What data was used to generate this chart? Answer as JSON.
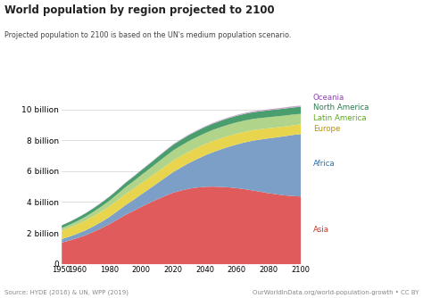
{
  "title": "World population by region projected to 2100",
  "subtitle": "Projected population to 2100 is based on the UN's medium population scenario.",
  "source_left": "Source: HYDE (2016) & UN, WPP (2019)",
  "source_right": "OurWorldInData.org/world-population-growth • CC BY",
  "ytick_labels": [
    "0",
    "2 billion",
    "4 billion",
    "6 billion",
    "8 billion",
    "10 billion"
  ],
  "ytick_values": [
    0,
    2,
    4,
    6,
    8,
    10
  ],
  "years": [
    1950,
    1955,
    1960,
    1965,
    1970,
    1975,
    1980,
    1985,
    1990,
    1995,
    2000,
    2005,
    2010,
    2015,
    2020,
    2025,
    2030,
    2035,
    2040,
    2045,
    2050,
    2055,
    2060,
    2065,
    2070,
    2075,
    2080,
    2085,
    2090,
    2095,
    2100
  ],
  "regions": [
    "Asia",
    "Africa",
    "Europe",
    "Latin America",
    "North America",
    "Oceania"
  ],
  "colors": {
    "Asia": "#e05c5c",
    "Africa": "#7b9fc7",
    "Europe": "#e8d44d",
    "Latin America": "#b0d48a",
    "North America": "#4a9e6e",
    "Oceania": "#c8a8cc"
  },
  "label_colors": {
    "Asia": "#c0392b",
    "Africa": "#2c6fad",
    "Europe": "#b8920a",
    "Latin America": "#5aaa1e",
    "North America": "#2d7a50",
    "Oceania": "#8e44ad"
  },
  "data": {
    "Asia": [
      1.4,
      1.54,
      1.7,
      1.88,
      2.1,
      2.34,
      2.6,
      2.9,
      3.2,
      3.45,
      3.72,
      3.97,
      4.21,
      4.43,
      4.64,
      4.78,
      4.9,
      4.97,
      5.02,
      5.03,
      5.01,
      4.98,
      4.93,
      4.86,
      4.78,
      4.69,
      4.6,
      4.53,
      4.46,
      4.42,
      4.39
    ],
    "Africa": [
      0.228,
      0.254,
      0.285,
      0.32,
      0.362,
      0.411,
      0.47,
      0.543,
      0.63,
      0.718,
      0.814,
      0.921,
      1.044,
      1.186,
      1.34,
      1.5,
      1.67,
      1.85,
      2.04,
      2.24,
      2.44,
      2.64,
      2.84,
      3.04,
      3.23,
      3.4,
      3.56,
      3.7,
      3.84,
      3.96,
      4.05
    ],
    "Europe": [
      0.549,
      0.576,
      0.605,
      0.634,
      0.657,
      0.676,
      0.694,
      0.705,
      0.721,
      0.728,
      0.73,
      0.731,
      0.738,
      0.744,
      0.748,
      0.745,
      0.74,
      0.736,
      0.732,
      0.727,
      0.72,
      0.712,
      0.703,
      0.692,
      0.68,
      0.667,
      0.655,
      0.643,
      0.633,
      0.624,
      0.63
    ],
    "Latin America": [
      0.168,
      0.192,
      0.219,
      0.25,
      0.285,
      0.323,
      0.362,
      0.402,
      0.443,
      0.481,
      0.521,
      0.559,
      0.596,
      0.63,
      0.654,
      0.672,
      0.688,
      0.7,
      0.71,
      0.718,
      0.724,
      0.728,
      0.73,
      0.73,
      0.728,
      0.725,
      0.72,
      0.714,
      0.707,
      0.699,
      0.68
    ],
    "North America": [
      0.172,
      0.186,
      0.204,
      0.219,
      0.232,
      0.244,
      0.256,
      0.267,
      0.279,
      0.298,
      0.314,
      0.328,
      0.343,
      0.358,
      0.371,
      0.379,
      0.387,
      0.393,
      0.399,
      0.406,
      0.412,
      0.419,
      0.425,
      0.43,
      0.435,
      0.44,
      0.445,
      0.45,
      0.455,
      0.459,
      0.46
    ],
    "Oceania": [
      0.013,
      0.014,
      0.016,
      0.017,
      0.019,
      0.021,
      0.023,
      0.025,
      0.027,
      0.029,
      0.031,
      0.033,
      0.036,
      0.039,
      0.042,
      0.044,
      0.047,
      0.049,
      0.051,
      0.054,
      0.057,
      0.059,
      0.062,
      0.064,
      0.066,
      0.069,
      0.071,
      0.073,
      0.075,
      0.077,
      0.079
    ]
  },
  "xlim": [
    1950,
    2100
  ],
  "ylim": [
    0,
    11.5
  ],
  "background_color": "#ffffff",
  "grid_color": "#d0d0d0",
  "label_ypos": {
    "Asia": 2.2,
    "Africa": 6.5,
    "Europe": 8.75,
    "Latin America": 9.45,
    "North America": 10.15,
    "Oceania": 10.75
  }
}
